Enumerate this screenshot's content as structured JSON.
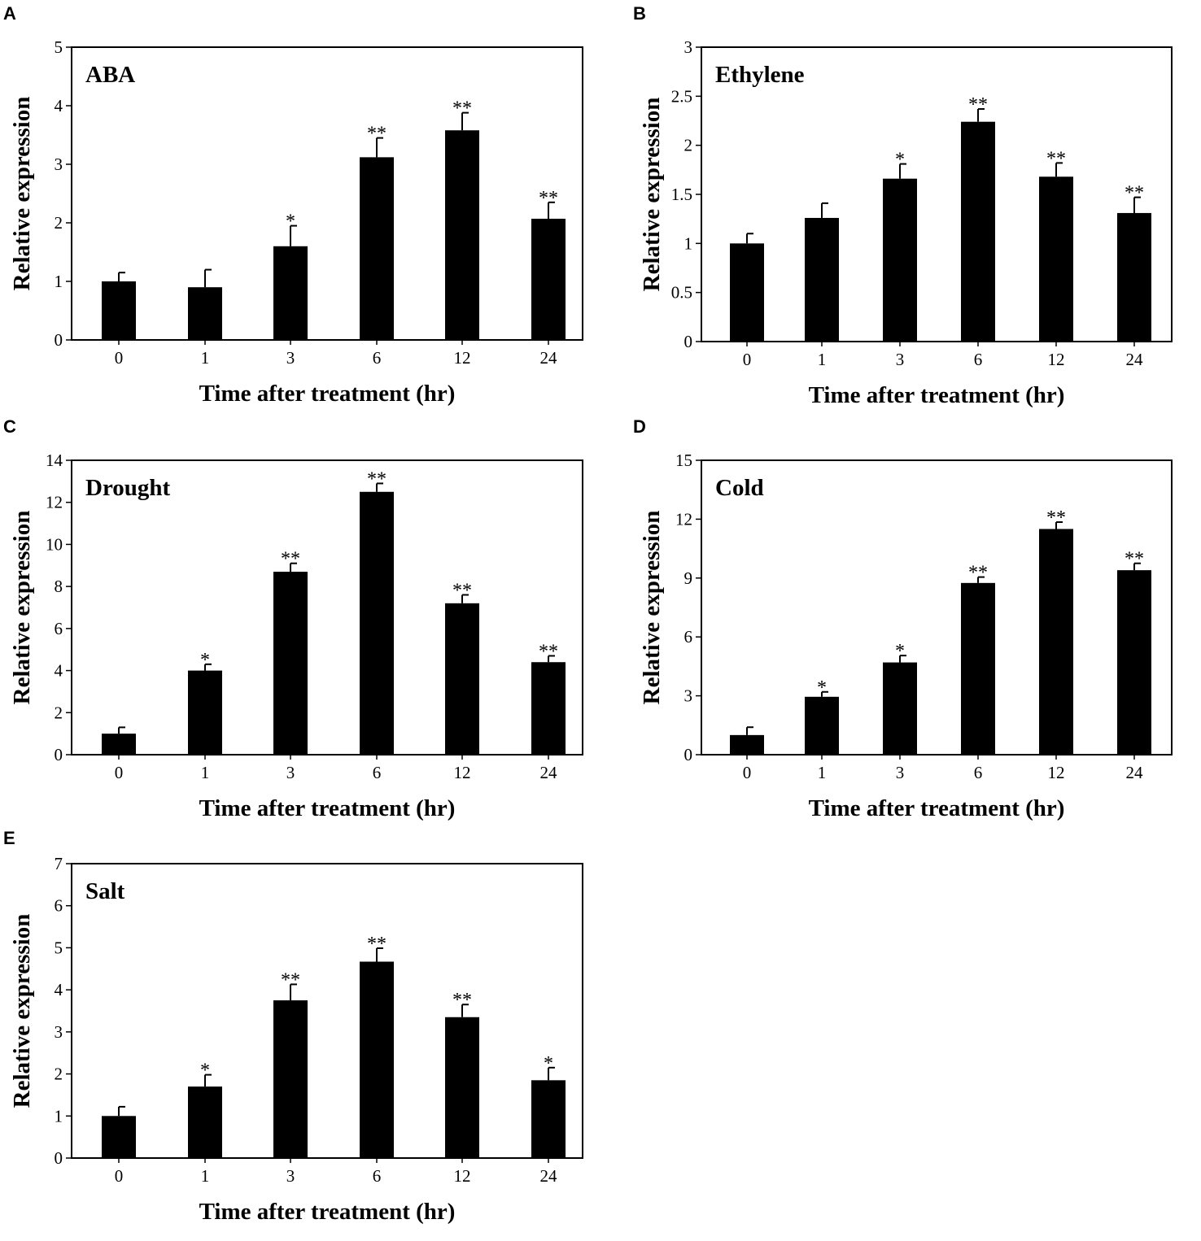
{
  "figure": {
    "x_axis_label": "Time after treatment (hr)",
    "y_axis_label": "Relative expression"
  },
  "chart_data": [
    {
      "panel": "A",
      "type": "bar",
      "title": "ABA",
      "categories": [
        "0",
        "1",
        "3",
        "6",
        "12",
        "24"
      ],
      "values": [
        1.0,
        0.9,
        1.6,
        3.12,
        3.58,
        2.07
      ],
      "errors": [
        0.15,
        0.3,
        0.35,
        0.33,
        0.3,
        0.28
      ],
      "significance": [
        "",
        "",
        "*",
        "**",
        "**",
        "**"
      ],
      "yticks": [
        "0",
        "1",
        "2",
        "3",
        "4",
        "5"
      ],
      "ylim": [
        0,
        5
      ],
      "xlabel": "Time after treatment (hr)",
      "ylabel": "Relative expression"
    },
    {
      "panel": "B",
      "type": "bar",
      "title": "Ethylene",
      "categories": [
        "0",
        "1",
        "3",
        "6",
        "12",
        "24"
      ],
      "values": [
        1.0,
        1.26,
        1.66,
        2.24,
        1.68,
        1.31
      ],
      "errors": [
        0.1,
        0.15,
        0.15,
        0.13,
        0.14,
        0.16
      ],
      "significance": [
        "",
        "",
        "*",
        "**",
        "**",
        "**"
      ],
      "yticks": [
        "0",
        "0.5",
        "1",
        "1.5",
        "2",
        "2.5",
        "3"
      ],
      "ylim": [
        0,
        3
      ],
      "xlabel": "Time after treatment (hr)",
      "ylabel": "Relative expression"
    },
    {
      "panel": "C",
      "type": "bar",
      "title": "Drought",
      "categories": [
        "0",
        "1",
        "3",
        "6",
        "12",
        "24"
      ],
      "values": [
        1.0,
        4.0,
        8.7,
        12.5,
        7.2,
        4.4
      ],
      "errors": [
        0.3,
        0.3,
        0.4,
        0.4,
        0.4,
        0.3
      ],
      "significance": [
        "",
        "*",
        "**",
        "**",
        "**",
        "**"
      ],
      "yticks": [
        "0",
        "2",
        "4",
        "6",
        "8",
        "10",
        "12",
        "14"
      ],
      "ylim": [
        0,
        14
      ],
      "xlabel": "Time after treatment (hr)",
      "ylabel": "Relative expression"
    },
    {
      "panel": "D",
      "type": "bar",
      "title": "Cold",
      "categories": [
        "0",
        "1",
        "3",
        "6",
        "12",
        "24"
      ],
      "values": [
        1.0,
        2.95,
        4.7,
        8.75,
        11.5,
        9.4
      ],
      "errors": [
        0.4,
        0.25,
        0.35,
        0.3,
        0.35,
        0.35
      ],
      "significance": [
        "",
        "*",
        "*",
        "**",
        "**",
        "**"
      ],
      "yticks": [
        "0",
        "3",
        "6",
        "9",
        "12",
        "15"
      ],
      "ylim": [
        0,
        15
      ],
      "xlabel": "Time after treatment (hr)",
      "ylabel": "Relative expression"
    },
    {
      "panel": "E",
      "type": "bar",
      "title": "Salt",
      "categories": [
        "0",
        "1",
        "3",
        "6",
        "12",
        "24"
      ],
      "values": [
        1.0,
        1.7,
        3.75,
        4.67,
        3.35,
        1.85
      ],
      "errors": [
        0.22,
        0.28,
        0.38,
        0.32,
        0.3,
        0.3
      ],
      "significance": [
        "",
        "*",
        "**",
        "**",
        "**",
        "*"
      ],
      "yticks": [
        "0",
        "1",
        "2",
        "3",
        "4",
        "5",
        "6",
        "7"
      ],
      "ylim": [
        0,
        7
      ],
      "xlabel": "Time after treatment (hr)",
      "ylabel": "Relative expression"
    }
  ]
}
